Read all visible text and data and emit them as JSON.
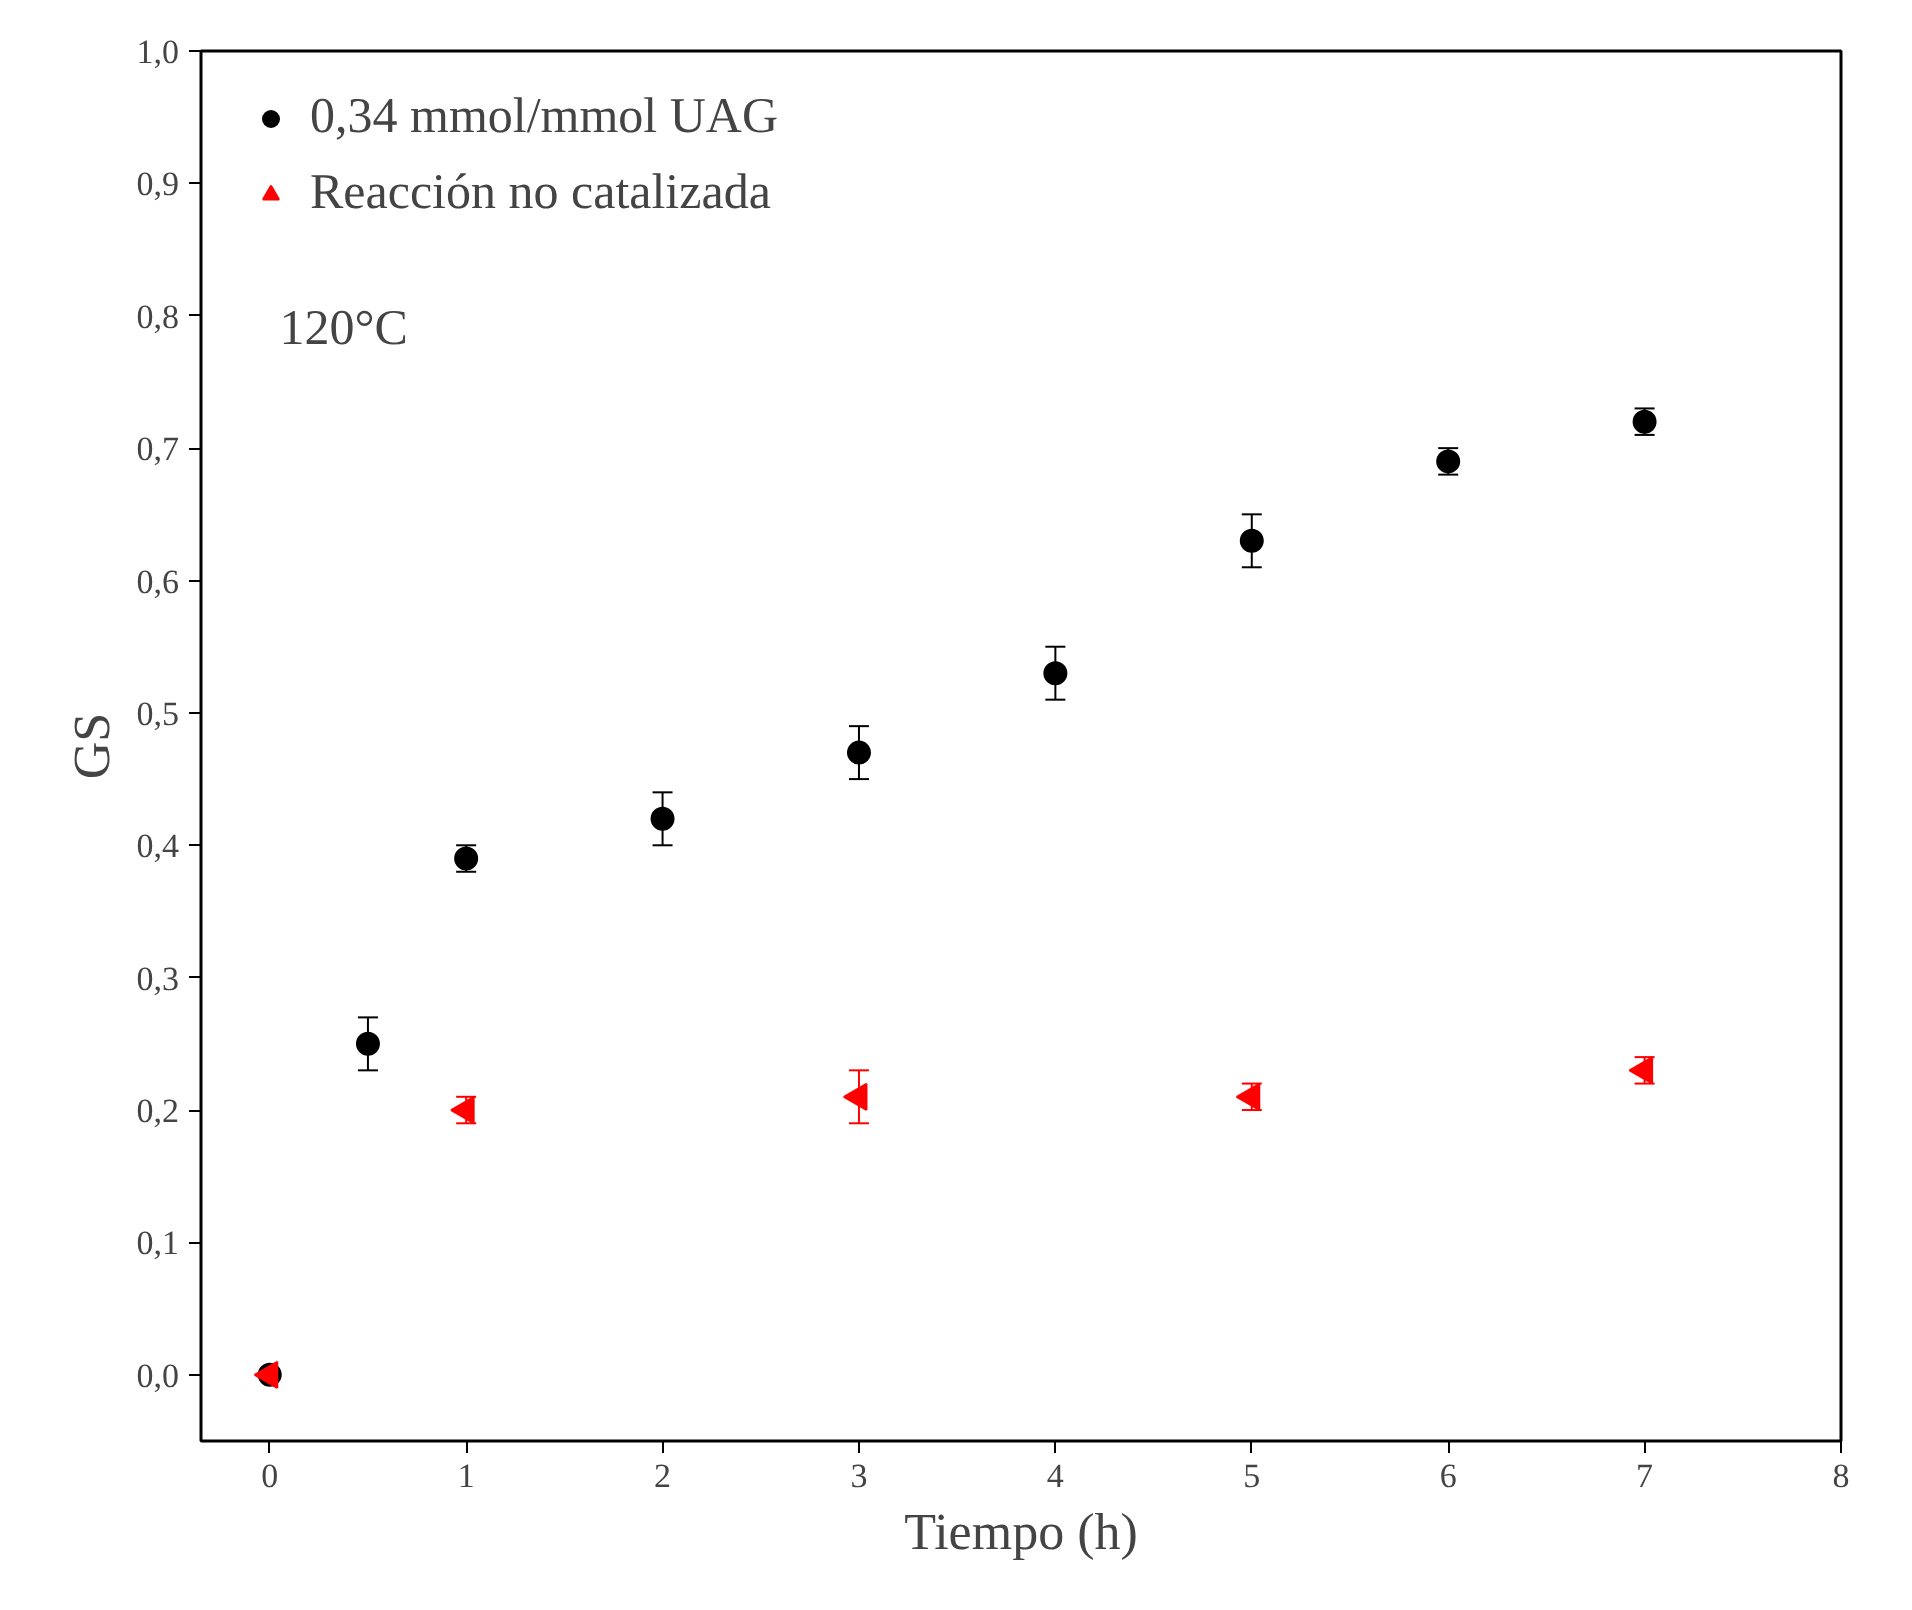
{
  "chart_data": {
    "type": "scatter",
    "xlabel": "Tiempo (h)",
    "ylabel": "GS",
    "xlim": [
      -0.35,
      8
    ],
    "ylim": [
      -0.05,
      1.0
    ],
    "xticks": [
      0,
      1,
      2,
      3,
      4,
      5,
      6,
      7,
      8
    ],
    "yticks": [
      {
        "value": 0,
        "label": "0,0"
      },
      {
        "value": 0.1,
        "label": "0,1"
      },
      {
        "value": 0.2,
        "label": "0,2"
      },
      {
        "value": 0.3,
        "label": "0,3"
      },
      {
        "value": 0.4,
        "label": "0,4"
      },
      {
        "value": 0.5,
        "label": "0,5"
      },
      {
        "value": 0.6,
        "label": "0,6"
      },
      {
        "value": 0.7,
        "label": "0,7"
      },
      {
        "value": 0.8,
        "label": "0,8"
      },
      {
        "value": 0.9,
        "label": "0,9"
      },
      {
        "value": 1.0,
        "label": "1,0"
      }
    ],
    "series": [
      {
        "name": "0,34 mmol/mmol UAG",
        "color": "#000000",
        "marker": "circle",
        "x": [
          0,
          0.5,
          1,
          2,
          3,
          4,
          5,
          6,
          7
        ],
        "values": [
          0,
          0.25,
          0.39,
          0.42,
          0.47,
          0.53,
          0.63,
          0.69,
          0.72
        ],
        "errors": [
          null,
          0.02,
          0.01,
          0.02,
          0.02,
          0.02,
          0.02,
          0.01,
          0.01
        ]
      },
      {
        "name": "Reacción no catalizada",
        "color": "#ff0000",
        "marker": "triangle",
        "x": [
          0,
          1,
          3,
          5,
          7
        ],
        "values": [
          0,
          0.2,
          0.21,
          0.21,
          0.23
        ],
        "errors": [
          null,
          0.01,
          0.02,
          0.01,
          0.01
        ]
      }
    ],
    "annotations": [
      "120°C"
    ],
    "legend": "top left",
    "grid": false
  }
}
